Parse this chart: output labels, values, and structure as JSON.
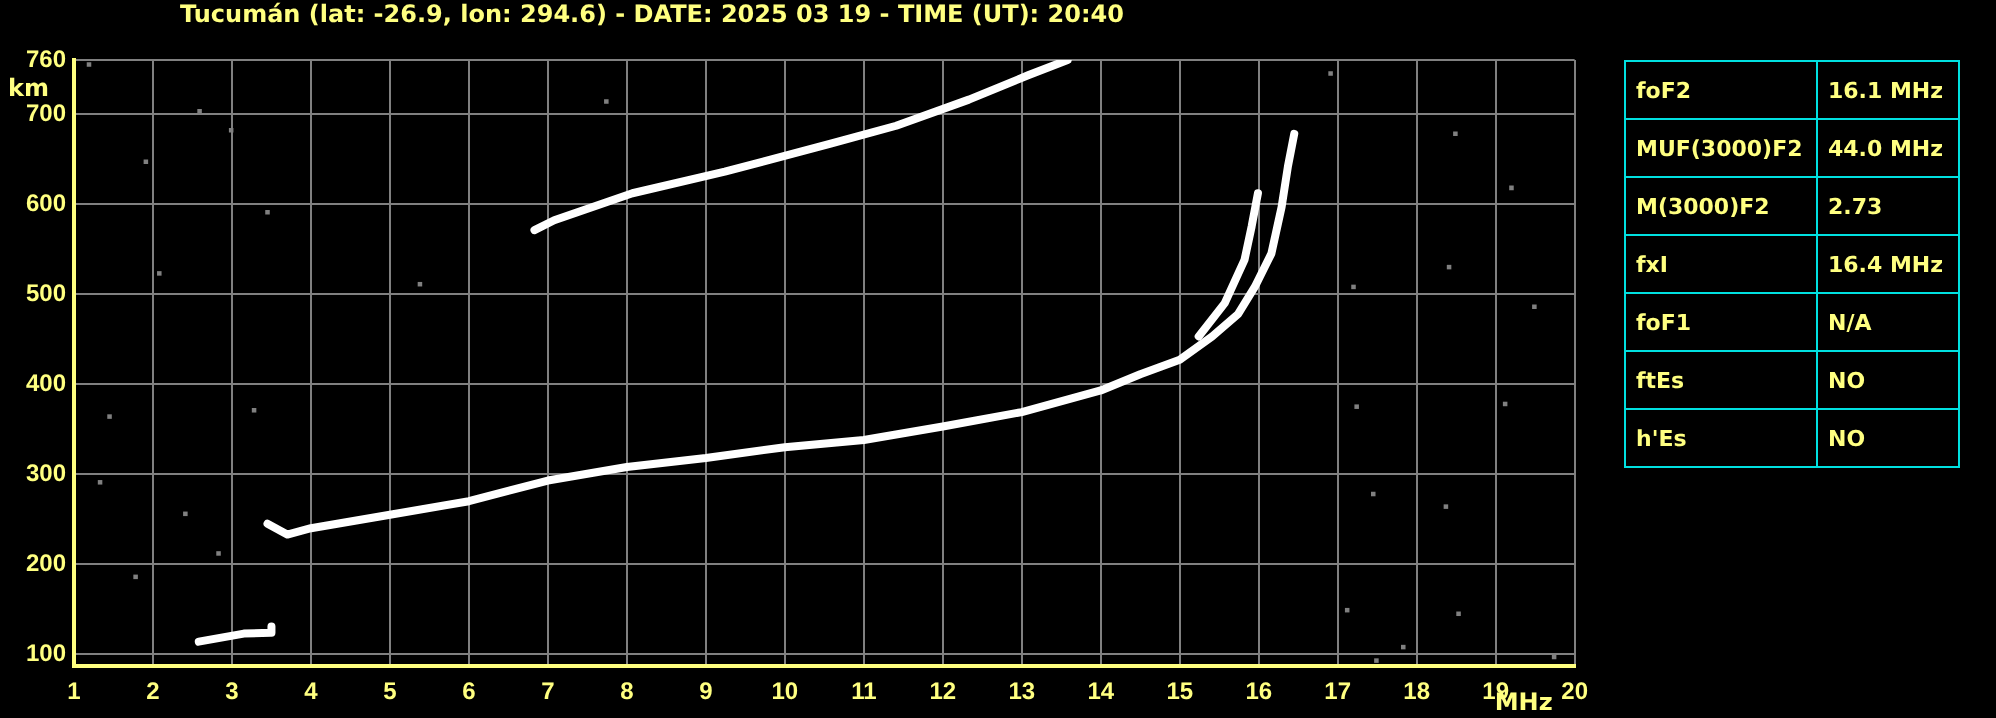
{
  "chart_data": [
    {
      "type": "line",
      "title": "Tucumán (lat: -26.9, lon: 294.6) - DATE: 2025 03 19 - TIME (UT): 20:40",
      "xlabel": "MHz",
      "ylabel": "km",
      "xlim": [
        1,
        20
      ],
      "xticks": [
        1,
        2,
        3,
        4,
        5,
        6,
        7,
        8,
        9,
        10,
        11,
        12,
        13,
        14,
        15,
        16,
        17,
        18,
        19,
        20
      ],
      "ylim": [
        87,
        760
      ],
      "yticks": [
        100,
        200,
        300,
        400,
        500,
        600,
        700,
        760
      ],
      "grid": true,
      "legend": false,
      "marker": "none",
      "line_style": "solid",
      "series": [
        {
          "color": "#ffffff",
          "x": [
            3.45,
            3.7,
            4.0,
            5,
            6,
            7,
            8,
            9,
            10,
            11,
            12,
            13,
            14,
            14.5,
            15,
            15.41,
            15.74,
            15.95,
            16.16,
            16.29,
            16.37,
            16.45
          ],
          "values": [
            245,
            233,
            240,
            255,
            270,
            293,
            308,
            318,
            330,
            338,
            353,
            369,
            393,
            411,
            427,
            453,
            478,
            508,
            545,
            597,
            642,
            678
          ]
        },
        {
          "color": "#ffffff",
          "x": [
            15.24,
            15.57,
            15.82,
            15.91,
            15.99
          ],
          "values": [
            453,
            490,
            538,
            575,
            612
          ]
        },
        {
          "color": "#ffffff",
          "x": [
            6.83,
            7.08,
            8.07,
            9.24,
            10.58,
            11.41,
            12.33,
            13.08,
            13.58
          ],
          "values": [
            571,
            582,
            612,
            636,
            667,
            687,
            716,
            743,
            760
          ]
        },
        {
          "color": "#ffffff",
          "x": [
            2.58,
            3.15,
            3.49,
            3.5
          ],
          "values": [
            114,
            123,
            124,
            131
          ]
        },
        {
          "type": "scatter",
          "marker": "square",
          "color": "#808080",
          "x": [
            1.19,
            1.91,
            2.59,
            2.08,
            2.99,
            3.45,
            5.38,
            7.74,
            1.33,
            1.45,
            1.78,
            2.41,
            2.83,
            3.28,
            16.91,
            18.49,
            19.2,
            18.41,
            17.2,
            19.49,
            17.24,
            19.12,
            17.45,
            18.37,
            17.12,
            18.53,
            17.49,
            19.74,
            17.83
          ],
          "values": [
            755,
            647,
            703,
            523,
            682,
            591,
            511,
            714,
            291,
            364,
            186,
            256,
            212,
            371,
            745,
            678,
            618,
            530,
            508,
            486,
            375,
            378,
            278,
            264,
            149,
            145,
            93,
            97,
            108
          ]
        }
      ]
    },
    {
      "type": "other",
      "annotations": [
        "foF2",
        "16.1 MHz",
        "MUF(3000)F2",
        "44.0 MHz",
        "M(3000)F2",
        "2.73",
        "fxI",
        "16.4 MHz",
        "foF1",
        "N/A",
        "ftEs",
        "NO",
        "h'Es",
        "NO"
      ]
    }
  ]
}
